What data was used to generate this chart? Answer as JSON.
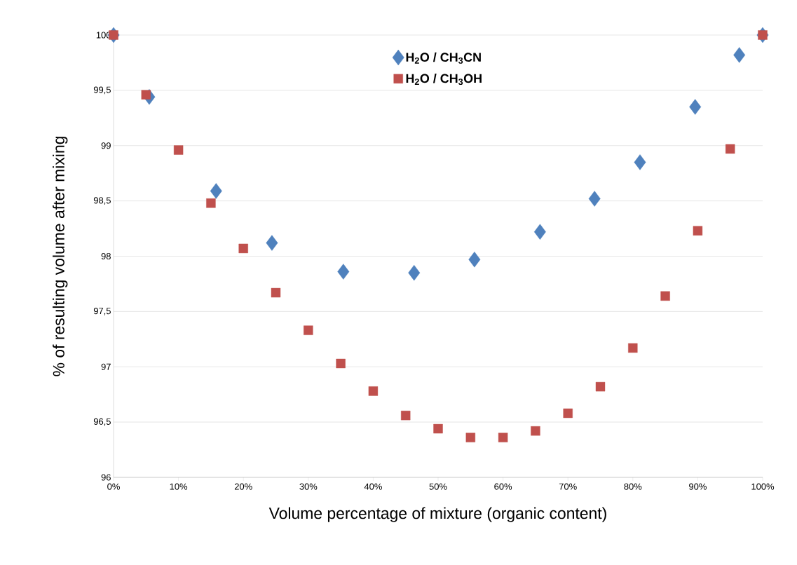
{
  "chart_data": {
    "type": "scatter",
    "xlabel": "Volume percentage of mixture (organic content)",
    "ylabel": "% of resulting volume after mixing",
    "xlim": [
      0,
      100
    ],
    "ylim": [
      96,
      100
    ],
    "xticks": [
      {
        "value": 0,
        "label": "0%"
      },
      {
        "value": 10,
        "label": "10%"
      },
      {
        "value": 20,
        "label": "20%"
      },
      {
        "value": 30,
        "label": "30%"
      },
      {
        "value": 40,
        "label": "40%"
      },
      {
        "value": 50,
        "label": "50%"
      },
      {
        "value": 60,
        "label": "60%"
      },
      {
        "value": 70,
        "label": "70%"
      },
      {
        "value": 80,
        "label": "80%"
      },
      {
        "value": 90,
        "label": "90%"
      },
      {
        "value": 100,
        "label": "100%"
      }
    ],
    "yticks": [
      96,
      {
        "value": 96.5,
        "label": "96,5"
      },
      97,
      {
        "value": 97.5,
        "label": "97,5"
      },
      98,
      {
        "value": 98.5,
        "label": "98,5"
      },
      99,
      {
        "value": 99.5,
        "label": "99,5"
      },
      100
    ],
    "grid": "y",
    "legend": "top",
    "series": [
      {
        "name": "H$_{2}$O / CH$_{3}$CN",
        "color": "#4f81bd",
        "marker": "diamond",
        "x": [
          0,
          5.5,
          15.8,
          24.4,
          35.4,
          46.3,
          55.6,
          65.7,
          74.1,
          81.1,
          89.6,
          96.4,
          100
        ],
        "values": [
          100,
          99.44,
          98.59,
          98.12,
          97.86,
          97.85,
          97.97,
          98.22,
          98.52,
          98.85,
          99.35,
          99.82,
          100
        ]
      },
      {
        "name": "H$_{2}$O / CH$_{3}$OH",
        "color": "#c0504d",
        "marker": "square",
        "x": [
          0,
          5,
          10,
          15,
          20,
          25,
          30,
          35,
          40,
          45,
          50,
          55,
          60,
          65,
          70,
          75,
          80,
          85,
          90,
          95,
          100
        ],
        "values": [
          100,
          99.46,
          98.96,
          98.48,
          98.07,
          97.67,
          97.33,
          97.03,
          96.78,
          96.56,
          96.44,
          96.36,
          96.36,
          96.42,
          96.58,
          96.82,
          97.17,
          97.64,
          98.23,
          98.97,
          100
        ]
      }
    ]
  }
}
